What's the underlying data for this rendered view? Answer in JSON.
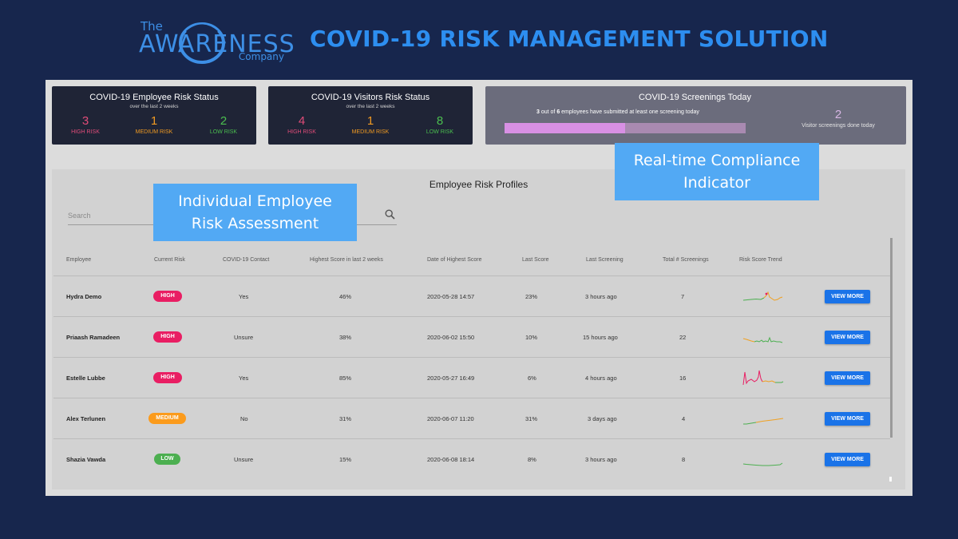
{
  "header": {
    "logo_the": "The",
    "logo_awareness": "AWARENESS",
    "logo_company": "Company",
    "title": "COVID-19 RISK MANAGEMENT SOLUTION"
  },
  "employee_status": {
    "title": "COVID-19 Employee Risk Status",
    "subtitle": "over the last 2 weeks",
    "high": {
      "value": "3",
      "label": "HIGH RISK"
    },
    "medium": {
      "value": "1",
      "label": "MEDIUM RISK"
    },
    "low": {
      "value": "2",
      "label": "LOW RISK"
    }
  },
  "visitor_status": {
    "title": "COVID-19 Visitors Risk Status",
    "subtitle": "over the last 2 weeks",
    "high": {
      "value": "4",
      "label": "HIGH RISK"
    },
    "medium": {
      "value": "1",
      "label": "MEDIUM RISK"
    },
    "low": {
      "value": "8",
      "label": "LOW RISK"
    }
  },
  "screenings": {
    "title": "COVID-19 Screenings Today",
    "submitted": "3",
    "text_mid": " out of ",
    "total": "6",
    "text_end": " employees have submitted at least one screening today",
    "progress_fraction": 0.5,
    "visitor_count": "2",
    "visitor_label": "Visitor screenings done today"
  },
  "profiles": {
    "title": "Employee Risk Profiles",
    "search_placeholder": "Search",
    "columns": [
      "Employee",
      "Current Risk",
      "COVID-19 Contact",
      "Highest Score in last 2 weeks",
      "Date of Highest Score",
      "Last Score",
      "Last Screening",
      "Total # Screenings",
      "Risk Score Trend"
    ],
    "view_more_label": "VIEW MORE",
    "rows": [
      {
        "employee": "Hydra Demo",
        "risk": "HIGH",
        "contact": "Yes",
        "highest": "46%",
        "date": "2020-05-28 14:57",
        "last_score": "23%",
        "last_screening": "3 hours ago",
        "total": "7"
      },
      {
        "employee": "Priaash Ramadeen",
        "risk": "HIGH",
        "contact": "Unsure",
        "highest": "38%",
        "date": "2020-06-02 15:50",
        "last_score": "10%",
        "last_screening": "15 hours ago",
        "total": "22"
      },
      {
        "employee": "Estelle Lubbe",
        "risk": "HIGH",
        "contact": "Yes",
        "highest": "85%",
        "date": "2020-05-27 16:49",
        "last_score": "6%",
        "last_screening": "4 hours ago",
        "total": "16"
      },
      {
        "employee": "Alex Terlunen",
        "risk": "MEDIUM",
        "contact": "No",
        "highest": "31%",
        "date": "2020-06-07 11:20",
        "last_score": "31%",
        "last_screening": "3 days ago",
        "total": "4"
      },
      {
        "employee": "Shazia Vawda",
        "risk": "LOW",
        "contact": "Unsure",
        "highest": "15%",
        "date": "2020-06-08 18:14",
        "last_score": "8%",
        "last_screening": "3 hours ago",
        "total": "8"
      }
    ]
  },
  "callouts": {
    "individual": [
      "Individual Employee",
      "Risk Assessment"
    ],
    "compliance": [
      "Real-time Compliance",
      "Indicator"
    ]
  },
  "colors": {
    "high": "#e91e63",
    "medium": "#fb9b1c",
    "low": "#4caf50",
    "accent": "#1a73e8"
  }
}
